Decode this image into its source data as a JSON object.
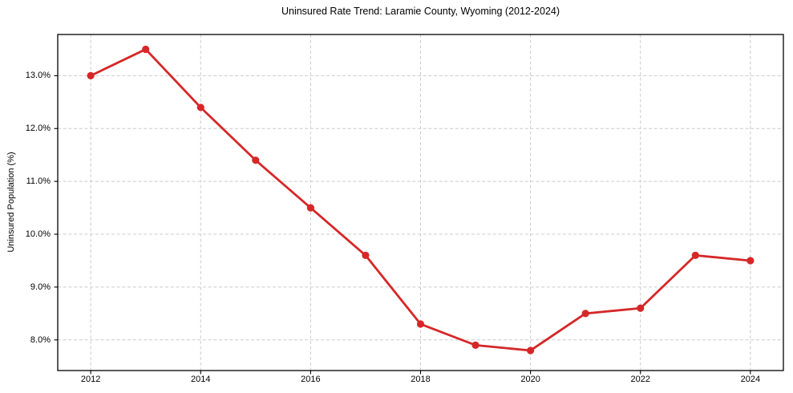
{
  "chart_data": {
    "type": "line",
    "title": "Uninsured Rate Trend: Laramie County, Wyoming (2012-2024)",
    "xlabel": "",
    "ylabel": "Uninsured Population (%)",
    "x": [
      2012,
      2013,
      2014,
      2015,
      2016,
      2017,
      2018,
      2019,
      2020,
      2021,
      2022,
      2023,
      2024
    ],
    "values": [
      13.0,
      13.5,
      12.4,
      11.4,
      10.5,
      9.6,
      8.3,
      7.9,
      7.8,
      8.5,
      8.6,
      9.6,
      9.5
    ],
    "x_ticks": [
      2012,
      2014,
      2016,
      2018,
      2020,
      2022,
      2024
    ],
    "x_tick_labels": [
      "2012",
      "2014",
      "2016",
      "2018",
      "2020",
      "2022",
      "2024"
    ],
    "y_ticks": [
      8,
      9,
      10,
      11,
      12,
      13
    ],
    "y_tick_labels": [
      "8.0%",
      "9.0%",
      "10.0%",
      "11.0%",
      "12.0%",
      "13.0%"
    ],
    "xlim": [
      2011.4,
      2024.6
    ],
    "ylim": [
      7.42,
      13.78
    ],
    "grid": true,
    "legend_position": "none",
    "line_color": "#d62728",
    "marker": "circle",
    "grid_color": "#cccccc",
    "frame_color": "#000000",
    "background": "#ffffff"
  }
}
